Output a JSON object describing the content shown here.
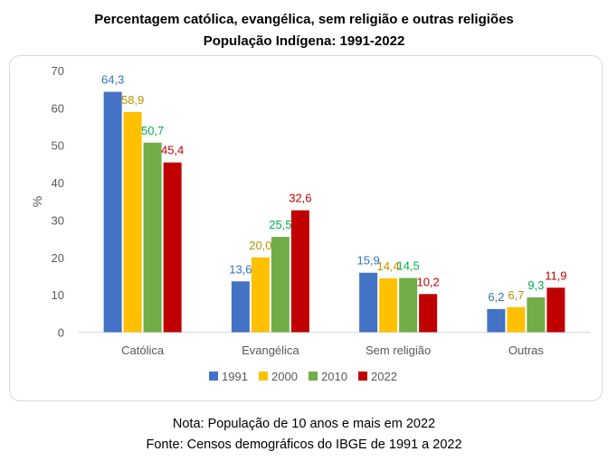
{
  "header": {
    "title_line1": "Percentagem católica, evangélica, sem religião e outras religiões",
    "title_line2": "População Indígena: 1991-2022"
  },
  "footer": {
    "note": "Nota: População de 10 anos e mais em 2022",
    "source": "Fonte: Censos demográficos do IBGE de 1991 a 2022"
  },
  "chart_data": {
    "type": "bar",
    "title": "Percentagem católica, evangélica, sem religião e outras religiões\nPopulação Indígena: 1991-2022",
    "xlabel": "",
    "ylabel": "%",
    "ylim": [
      0,
      70
    ],
    "yticks": [
      0,
      10,
      20,
      30,
      40,
      50,
      60,
      70
    ],
    "grid": false,
    "legend": "bottom",
    "categories": [
      "Católica",
      "Evangélica",
      "Sem religião",
      "Outras"
    ],
    "series": [
      {
        "name": "1991",
        "color": "#4472c4",
        "values": [
          64.3,
          13.6,
          15.9,
          6.2
        ],
        "labels": [
          "64,3",
          "13,6",
          "15,9",
          "6,2"
        ]
      },
      {
        "name": "2000",
        "color": "#ffc000",
        "values": [
          58.9,
          20.0,
          14.4,
          6.7
        ],
        "labels": [
          "58,9",
          "20,0",
          "14,4",
          "6,7"
        ]
      },
      {
        "name": "2010",
        "color": "#70ad47",
        "values": [
          50.7,
          25.5,
          14.5,
          9.3
        ],
        "labels": [
          "50,7",
          "25,5",
          "14,5",
          "9,3"
        ]
      },
      {
        "name": "2022",
        "color": "#c00000",
        "values": [
          45.4,
          32.6,
          10.2,
          11.9
        ],
        "labels": [
          "45,4",
          "32,6",
          "10,2",
          "11,9"
        ]
      }
    ],
    "label_colors": [
      "#2e75b6",
      "#bf9000",
      "#00b050",
      "#c00000"
    ]
  }
}
